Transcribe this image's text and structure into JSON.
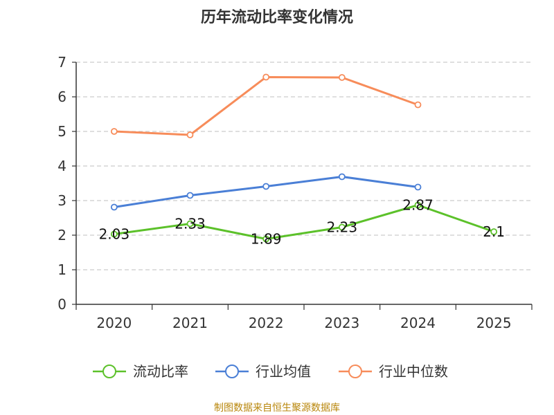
{
  "chart_data": {
    "type": "line",
    "title": "历年流动比率变化情况",
    "categories": [
      "2020",
      "2021",
      "2022",
      "2023",
      "2024",
      "2025"
    ],
    "ylim": [
      0,
      7
    ],
    "yticks": [
      0,
      1,
      2,
      3,
      4,
      5,
      6,
      7
    ],
    "grid": true,
    "legend_position": "bottom",
    "series": [
      {
        "name": "流动比率",
        "color": "#5cc12a",
        "values": [
          2.03,
          2.33,
          1.89,
          2.23,
          2.87,
          2.1
        ],
        "labels": [
          "2.03",
          "2.33",
          "1.89",
          "2.23",
          "2.87",
          "2.1"
        ]
      },
      {
        "name": "行业均值",
        "color": "#4a7fd6",
        "values": [
          2.81,
          3.15,
          3.41,
          3.69,
          3.39,
          null
        ]
      },
      {
        "name": "行业中位数",
        "color": "#f78c5a",
        "values": [
          5.0,
          4.9,
          6.57,
          6.56,
          5.77,
          null
        ]
      }
    ],
    "source": "制图数据来自恒生聚源数据库"
  }
}
